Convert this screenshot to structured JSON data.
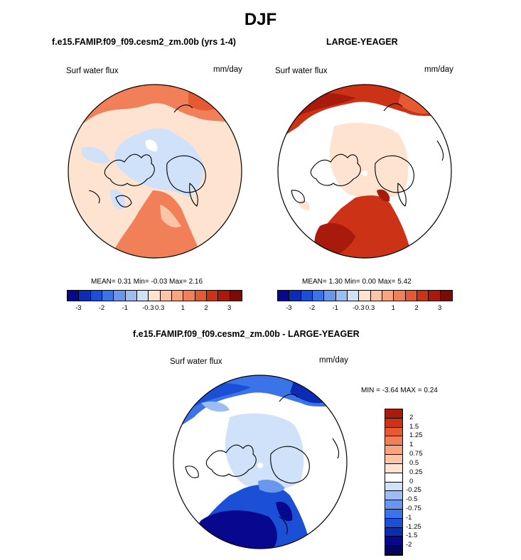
{
  "page": {
    "title": "DJF"
  },
  "panels": [
    {
      "title": "f.e15.FAMIP.f09_f09.cesm2_zm.00b (yrs 1-4)",
      "variable": "Surf water flux",
      "units": "mm/day",
      "stats": "MEAN=  0.31  Min=  -0.03  Max=   2.16"
    },
    {
      "title": "LARGE-YEAGER",
      "variable": "Surf water flux",
      "units": "mm/day",
      "stats": "MEAN=  1.30  Min=  0.00  Max=   5.42"
    },
    {
      "title": "f.e15.FAMIP.f09_f09.cesm2_zm.00b - LARGE-YEAGER",
      "variable": "Surf water flux",
      "units": "mm/day",
      "stats": "MIN =  -3.64 MAX =   0.24"
    }
  ],
  "chart_data": [
    {
      "type": "heatmap",
      "projection": "north polar stereographic",
      "title": "f.e15.FAMIP.f09_f09.cesm2_zm.00b (yrs 1-4)",
      "variable": "Surf water flux",
      "units": "mm/day",
      "mean": 0.31,
      "min": -0.03,
      "max": 2.16,
      "colorbar_ticks": [
        "-3",
        "-2",
        "-1",
        "-0.3",
        "0.3",
        "1",
        "2",
        "3"
      ],
      "colorbar_colors": [
        "#08088f",
        "#0c2cb4",
        "#1a4fd6",
        "#3a74e8",
        "#6a97ee",
        "#9cbcf2",
        "#cfe2fa",
        "#fde3d0",
        "#fbc6a8",
        "#f7a47f",
        "#f17f57",
        "#e55a33",
        "#cc3316",
        "#a81a0b",
        "#7d0a05"
      ]
    },
    {
      "type": "heatmap",
      "projection": "north polar stereographic",
      "title": "LARGE-YEAGER",
      "variable": "Surf water flux",
      "units": "mm/day",
      "mean": 1.3,
      "min": 0.0,
      "max": 5.42,
      "colorbar_ticks": [
        "-3",
        "-2",
        "-1",
        "-0.3",
        "0.3",
        "1",
        "2",
        "3"
      ],
      "colorbar_colors": [
        "#08088f",
        "#0c2cb4",
        "#1a4fd6",
        "#3a74e8",
        "#6a97ee",
        "#9cbcf2",
        "#cfe2fa",
        "#fde3d0",
        "#fbc6a8",
        "#f7a47f",
        "#f17f57",
        "#e55a33",
        "#cc3316",
        "#a81a0b",
        "#7d0a05"
      ]
    },
    {
      "type": "heatmap",
      "projection": "north polar stereographic",
      "title": "f.e15.FAMIP.f09_f09.cesm2_zm.00b - LARGE-YEAGER",
      "variable": "Surf water flux",
      "units": "mm/day",
      "min": -3.64,
      "max": 0.24,
      "colorbar_ticks": [
        "2",
        "1.5",
        "1.25",
        "1",
        "0.75",
        "0.5",
        "0.25",
        "0",
        "-0.25",
        "-0.5",
        "-0.75",
        "-1",
        "-1.25",
        "-1.5",
        "-2"
      ],
      "colorbar_colors": [
        "#a81a0b",
        "#cc3316",
        "#e55a33",
        "#f17f57",
        "#f7a47f",
        "#fbc6a8",
        "#fde3d0",
        "#ffffff",
        "#cfe2fa",
        "#9cbcf2",
        "#6a97ee",
        "#3a74e8",
        "#1a4fd6",
        "#0c2cb4",
        "#08088f",
        "#050560"
      ]
    }
  ]
}
